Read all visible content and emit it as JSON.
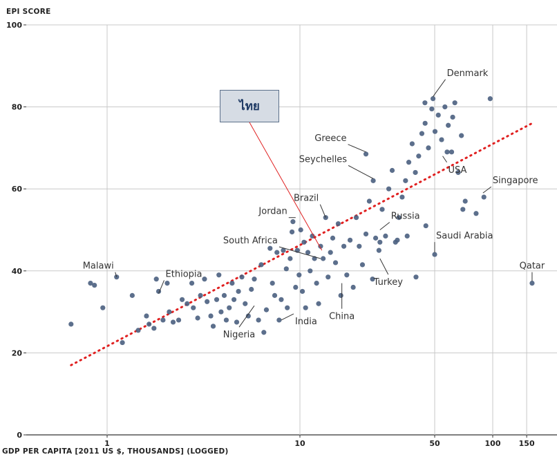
{
  "chart_data": {
    "type": "scatter",
    "ylabel": "EPI SCORE",
    "xlabel": "GDP PER CAPITA [2011 US $, THOUSANDS] (LOGGED)",
    "x_scale": "log",
    "xlim": [
      0.4,
      200
    ],
    "ylim": [
      0,
      100
    ],
    "x_ticks": [
      1,
      10,
      50,
      100,
      150
    ],
    "y_ticks": [
      0,
      20,
      40,
      60,
      80,
      100
    ],
    "grid": true,
    "point_color": "#4a5f80",
    "trend_color": "#e02020",
    "trend_line": {
      "x": [
        0.65,
        160
      ],
      "y": [
        17,
        76
      ]
    },
    "points": [
      {
        "x": 0.65,
        "y": 27
      },
      {
        "x": 0.82,
        "y": 37
      },
      {
        "x": 0.86,
        "y": 36.5
      },
      {
        "x": 0.95,
        "y": 31
      },
      {
        "x": 1.12,
        "y": 38.5
      },
      {
        "x": 1.2,
        "y": 22.5
      },
      {
        "x": 1.35,
        "y": 34
      },
      {
        "x": 1.45,
        "y": 25.5
      },
      {
        "x": 1.6,
        "y": 29
      },
      {
        "x": 1.65,
        "y": 27
      },
      {
        "x": 1.75,
        "y": 26
      },
      {
        "x": 1.8,
        "y": 38
      },
      {
        "x": 1.85,
        "y": 35
      },
      {
        "x": 1.95,
        "y": 28
      },
      {
        "x": 2.05,
        "y": 37
      },
      {
        "x": 2.1,
        "y": 30
      },
      {
        "x": 2.2,
        "y": 27.5
      },
      {
        "x": 2.35,
        "y": 28
      },
      {
        "x": 2.45,
        "y": 33
      },
      {
        "x": 2.6,
        "y": 32
      },
      {
        "x": 2.75,
        "y": 37
      },
      {
        "x": 2.8,
        "y": 31
      },
      {
        "x": 2.95,
        "y": 28.5
      },
      {
        "x": 3.05,
        "y": 34
      },
      {
        "x": 3.2,
        "y": 38
      },
      {
        "x": 3.3,
        "y": 32.5
      },
      {
        "x": 3.45,
        "y": 29
      },
      {
        "x": 3.55,
        "y": 26.5
      },
      {
        "x": 3.7,
        "y": 33
      },
      {
        "x": 3.8,
        "y": 39
      },
      {
        "x": 3.9,
        "y": 30
      },
      {
        "x": 4.05,
        "y": 34
      },
      {
        "x": 4.15,
        "y": 28
      },
      {
        "x": 4.3,
        "y": 31
      },
      {
        "x": 4.45,
        "y": 37
      },
      {
        "x": 4.55,
        "y": 33
      },
      {
        "x": 4.7,
        "y": 27.5
      },
      {
        "x": 4.8,
        "y": 35
      },
      {
        "x": 5.0,
        "y": 38.5
      },
      {
        "x": 5.2,
        "y": 32
      },
      {
        "x": 5.4,
        "y": 29
      },
      {
        "x": 5.6,
        "y": 35.5
      },
      {
        "x": 5.8,
        "y": 38
      },
      {
        "x": 6.1,
        "y": 28
      },
      {
        "x": 6.3,
        "y": 41.5
      },
      {
        "x": 6.5,
        "y": 25
      },
      {
        "x": 6.7,
        "y": 30.5
      },
      {
        "x": 7.0,
        "y": 45.5
      },
      {
        "x": 7.2,
        "y": 37
      },
      {
        "x": 7.4,
        "y": 34
      },
      {
        "x": 7.6,
        "y": 44.5
      },
      {
        "x": 7.8,
        "y": 28
      },
      {
        "x": 8.0,
        "y": 33
      },
      {
        "x": 8.2,
        "y": 45
      },
      {
        "x": 8.5,
        "y": 40.5
      },
      {
        "x": 8.6,
        "y": 31
      },
      {
        "x": 8.9,
        "y": 43
      },
      {
        "x": 9.1,
        "y": 49.5
      },
      {
        "x": 9.2,
        "y": 52
      },
      {
        "x": 9.5,
        "y": 36
      },
      {
        "x": 9.7,
        "y": 45
      },
      {
        "x": 9.9,
        "y": 39
      },
      {
        "x": 10.1,
        "y": 50
      },
      {
        "x": 10.3,
        "y": 35
      },
      {
        "x": 10.5,
        "y": 47
      },
      {
        "x": 10.7,
        "y": 31
      },
      {
        "x": 11.0,
        "y": 44.5
      },
      {
        "x": 11.3,
        "y": 40
      },
      {
        "x": 11.6,
        "y": 48.5
      },
      {
        "x": 11.9,
        "y": 43
      },
      {
        "x": 12.2,
        "y": 37
      },
      {
        "x": 12.5,
        "y": 32
      },
      {
        "x": 12.8,
        "y": 46
      },
      {
        "x": 13.2,
        "y": 43
      },
      {
        "x": 13.6,
        "y": 53
      },
      {
        "x": 14.0,
        "y": 38.5
      },
      {
        "x": 14.4,
        "y": 44.5
      },
      {
        "x": 14.8,
        "y": 48
      },
      {
        "x": 15.3,
        "y": 42
      },
      {
        "x": 15.8,
        "y": 51.5
      },
      {
        "x": 16.3,
        "y": 34
      },
      {
        "x": 16.9,
        "y": 46
      },
      {
        "x": 17.5,
        "y": 39
      },
      {
        "x": 18.2,
        "y": 47.5
      },
      {
        "x": 18.9,
        "y": 36
      },
      {
        "x": 19.6,
        "y": 53
      },
      {
        "x": 20.3,
        "y": 46
      },
      {
        "x": 21.1,
        "y": 41.5
      },
      {
        "x": 22.0,
        "y": 49
      },
      {
        "x": 22.9,
        "y": 57
      },
      {
        "x": 23.8,
        "y": 38
      },
      {
        "x": 24.7,
        "y": 48
      },
      {
        "x": 25.7,
        "y": 45
      },
      {
        "x": 26.7,
        "y": 55
      },
      {
        "x": 27.8,
        "y": 48.5
      },
      {
        "x": 28.9,
        "y": 60
      },
      {
        "x": 30.1,
        "y": 64.5
      },
      {
        "x": 31.3,
        "y": 47
      },
      {
        "x": 32.6,
        "y": 53
      },
      {
        "x": 33.9,
        "y": 58
      },
      {
        "x": 35.3,
        "y": 62
      },
      {
        "x": 36.7,
        "y": 66.5
      },
      {
        "x": 38.2,
        "y": 71
      },
      {
        "x": 39.7,
        "y": 64
      },
      {
        "x": 41.3,
        "y": 68
      },
      {
        "x": 42.9,
        "y": 73.5
      },
      {
        "x": 44.6,
        "y": 76
      },
      {
        "x": 46.4,
        "y": 70
      },
      {
        "x": 48.3,
        "y": 79.5
      },
      {
        "x": 50.2,
        "y": 74
      },
      {
        "x": 52.2,
        "y": 78
      },
      {
        "x": 54.3,
        "y": 72
      },
      {
        "x": 56.5,
        "y": 80
      },
      {
        "x": 58.8,
        "y": 75.5
      },
      {
        "x": 61.2,
        "y": 69
      },
      {
        "x": 63.6,
        "y": 81
      },
      {
        "x": 66.2,
        "y": 64
      },
      {
        "x": 68.8,
        "y": 73
      },
      {
        "x": 72.0,
        "y": 57
      },
      {
        "x": 50.0,
        "y": 44
      },
      {
        "x": 45.0,
        "y": 51
      },
      {
        "x": 44.5,
        "y": 81
      },
      {
        "x": 49.0,
        "y": 82
      },
      {
        "x": 62.0,
        "y": 77.5
      },
      {
        "x": 97.0,
        "y": 82
      },
      {
        "x": 58.0,
        "y": 69
      },
      {
        "x": 70.0,
        "y": 55
      },
      {
        "x": 90.0,
        "y": 58
      },
      {
        "x": 82.0,
        "y": 54
      },
      {
        "x": 40.0,
        "y": 38.5
      },
      {
        "x": 32.0,
        "y": 47.5
      },
      {
        "x": 26.0,
        "y": 47
      },
      {
        "x": 36.0,
        "y": 48.5
      },
      {
        "x": 24.0,
        "y": 62
      },
      {
        "x": 22.0,
        "y": 68.5
      },
      {
        "x": 160.0,
        "y": 37
      }
    ],
    "annotations": [
      {
        "text": "Denmark",
        "x": 49,
        "y": 82.5
      },
      {
        "text": "Greece",
        "x": 22,
        "y": 69
      },
      {
        "text": "Seychelles",
        "x": 24,
        "y": 62.5
      },
      {
        "text": "USA",
        "x": 55,
        "y": 68
      },
      {
        "text": "Singapore",
        "x": 89,
        "y": 59
      },
      {
        "text": "Brazil",
        "x": 13.6,
        "y": 53
      },
      {
        "text": "Jordan",
        "x": 9.5,
        "y": 53
      },
      {
        "text": "Russia",
        "x": 26,
        "y": 50
      },
      {
        "text": "South Africa",
        "x": 12.8,
        "y": 43
      },
      {
        "text": "Saudi Arabia",
        "x": 50,
        "y": 44.5
      },
      {
        "text": "Malawi",
        "x": 1.12,
        "y": 38.5
      },
      {
        "text": "Ethiopia",
        "x": 1.85,
        "y": 34.5
      },
      {
        "text": "Qatar",
        "x": 160,
        "y": 37.5
      },
      {
        "text": "Turkey",
        "x": 26,
        "y": 43
      },
      {
        "text": "China",
        "x": 16.5,
        "y": 37
      },
      {
        "text": "India",
        "x": 8.0,
        "y": 28
      },
      {
        "text": "Nigeria",
        "x": 5.8,
        "y": 31.5
      }
    ],
    "callout": {
      "text": "ไทย",
      "x": 13.0,
      "y": 45
    }
  }
}
